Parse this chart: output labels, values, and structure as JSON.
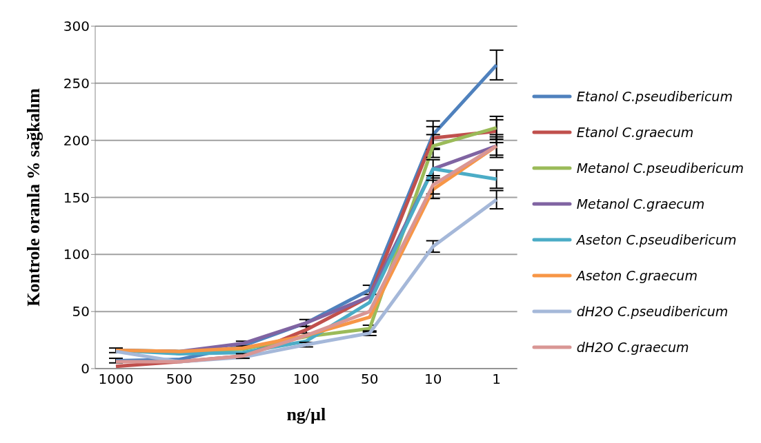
{
  "chart_data": {
    "type": "line",
    "xlabel": "ng/µl",
    "ylabel": "Kontrole oranla % sağkalım",
    "categories": [
      "1000",
      "500",
      "250",
      "100",
      "50",
      "10",
      "1"
    ],
    "ylim": [
      0,
      300
    ],
    "yticks": [
      0,
      50,
      100,
      150,
      200,
      250,
      300
    ],
    "grid": "y",
    "legend": "right",
    "marker": "none",
    "line_style": "solid",
    "series": [
      {
        "name": "Etanol C.pseudibericum",
        "color": "#4f81bd",
        "values": [
          7,
          8,
          20,
          40,
          69,
          205,
          266
        ],
        "errors": [
          2,
          null,
          null,
          3,
          4,
          12,
          13
        ]
      },
      {
        "name": "Etanol C.graecum",
        "color": "#c0504d",
        "values": [
          2,
          6,
          11,
          34,
          63,
          202,
          208
        ],
        "errors": [
          null,
          null,
          null,
          3,
          null,
          10,
          10
        ]
      },
      {
        "name": "Metanol C.pseudibericum",
        "color": "#9bbb59",
        "values": [
          16,
          15,
          17,
          28,
          35,
          195,
          211
        ],
        "errors": [
          null,
          null,
          null,
          null,
          3,
          10,
          10
        ]
      },
      {
        "name": "Metanol C.graecum",
        "color": "#8064a2",
        "values": [
          16,
          15,
          22,
          40,
          63,
          175,
          195
        ],
        "errors": [
          null,
          null,
          2,
          null,
          null,
          8,
          8
        ]
      },
      {
        "name": "Aseton C.pseudibericum",
        "color": "#4bacc6",
        "values": [
          16,
          13,
          14,
          24,
          58,
          175,
          166
        ],
        "errors": [
          null,
          null,
          null,
          null,
          null,
          null,
          8
        ]
      },
      {
        "name": "Aseton C.graecum",
        "color": "#f79646",
        "values": [
          16,
          15,
          18,
          29,
          45,
          157,
          195
        ],
        "errors": [
          2,
          null,
          null,
          null,
          null,
          8,
          10
        ]
      },
      {
        "name": "dH2O C.pseudibericum",
        "color": "#a5b8d9",
        "values": [
          15,
          6,
          10,
          21,
          31,
          107,
          148
        ],
        "errors": [
          null,
          null,
          null,
          2,
          2,
          5,
          8
        ]
      },
      {
        "name": "dH2O C.graecum",
        "color": "#d99694",
        "values": [
          6,
          6,
          11,
          29,
          50,
          161,
          195
        ],
        "errors": [
          null,
          null,
          2,
          null,
          null,
          8,
          null
        ]
      }
    ]
  }
}
